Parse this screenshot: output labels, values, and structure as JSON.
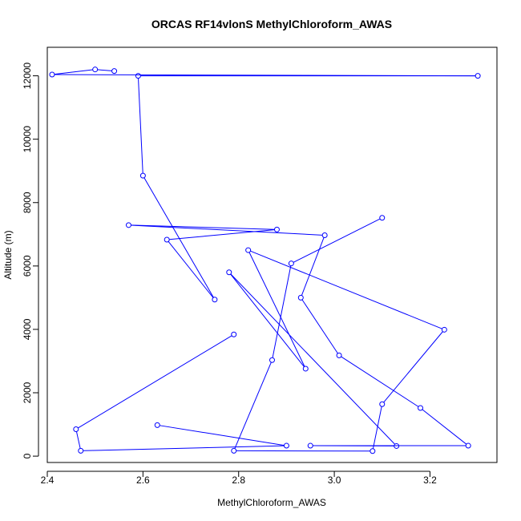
{
  "chart_data": {
    "type": "line",
    "title": "ORCAS RF14vlonS MethylChloroform_AWAS",
    "xlabel": "MethylChloroform_AWAS",
    "ylabel": "Altitude (m)",
    "xlim": [
      2.4,
      3.34
    ],
    "ylim": [
      -200,
      12900
    ],
    "x_ticks": [
      2.4,
      2.6,
      2.8,
      3.0,
      3.2
    ],
    "x_tick_labels": [
      "2.4",
      "2.6",
      "2.8",
      "3.0",
      "3.2"
    ],
    "y_ticks": [
      0,
      2000,
      4000,
      6000,
      8000,
      10000,
      12000
    ],
    "y_tick_labels": [
      "0",
      "2000",
      "4000",
      "6000",
      "8000",
      "10000",
      "12000"
    ],
    "series": [
      {
        "color": "#0000ff",
        "marker": "open-circle",
        "x": [
          2.54,
          2.5,
          2.41,
          3.3,
          2.59,
          2.6,
          2.75,
          2.65,
          2.88,
          2.57,
          2.98,
          2.93,
          3.01,
          3.18,
          3.28,
          2.95,
          3.13,
          2.78,
          2.94,
          2.82,
          3.23,
          3.1,
          3.08,
          2.79,
          2.87,
          2.91,
          3.1
        ],
        "y": [
          12150,
          12200,
          12040,
          12000,
          12000,
          8850,
          4940,
          6830,
          7150,
          7290,
          6970,
          5000,
          3180,
          1520,
          330,
          330,
          320,
          5800,
          2760,
          6500,
          3990,
          1640,
          160,
          170,
          3030,
          6080,
          7520
        ]
      },
      {
        "color": "#0000ff",
        "marker": "open-circle",
        "x": [
          2.79,
          2.46,
          2.47,
          2.9,
          2.63
        ],
        "y": [
          3840,
          850,
          170,
          330,
          980
        ]
      }
    ]
  }
}
